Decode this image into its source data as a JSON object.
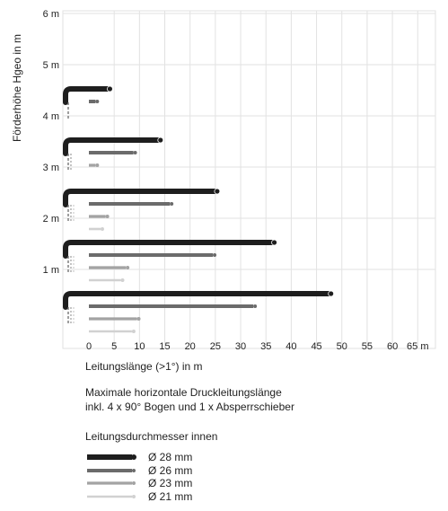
{
  "chart_data": {
    "type": "bar",
    "orientation": "horizontal",
    "ylabel": "Förderhöhe Hgeo in m",
    "xlabel": "Leitungslänge (>1°) in m",
    "xlim": [
      0,
      65
    ],
    "ylim": [
      0,
      6
    ],
    "x_ticks": [
      0,
      5,
      10,
      15,
      20,
      25,
      30,
      35,
      40,
      45,
      50,
      55,
      60,
      65
    ],
    "x_tick_labels": [
      "0",
      "5",
      "10",
      "15",
      "20",
      "25",
      "30",
      "35",
      "40",
      "45",
      "50",
      "55",
      "60",
      "65 m"
    ],
    "y_ticks": [
      1,
      2,
      3,
      4,
      5,
      6
    ],
    "y_tick_labels": [
      "1 m",
      "2 m",
      "3 m",
      "4 m",
      "5 m",
      "6 m"
    ],
    "grid": true,
    "categories": [
      "1 m",
      "2 m",
      "3 m",
      "4 m",
      "5 m"
    ],
    "series": [
      {
        "name": "Ø 28 mm",
        "color": "#1e1e1e",
        "values": [
          47.5,
          36.3,
          25.0,
          13.8,
          3.8
        ]
      },
      {
        "name": "Ø 26 mm",
        "color": "#6b6b6b",
        "values": [
          32.5,
          24.5,
          16.0,
          8.8,
          1.3
        ]
      },
      {
        "name": "Ø 23 mm",
        "color": "#a3a3a3",
        "values": [
          9.5,
          7.3,
          3.3,
          1.3,
          null
        ]
      },
      {
        "name": "Ø 21 mm",
        "color": "#d1d1d1",
        "values": [
          8.5,
          6.3,
          2.3,
          null,
          null
        ]
      }
    ],
    "legend_placement": "bottom-left"
  },
  "note": {
    "line1": "Maximale horizontale Druckleitungslänge",
    "line2": "inkl. 4 x 90° Bogen und 1 x Absperrschieber"
  },
  "legend": {
    "title": "Leitungsdurchmesser innen"
  }
}
